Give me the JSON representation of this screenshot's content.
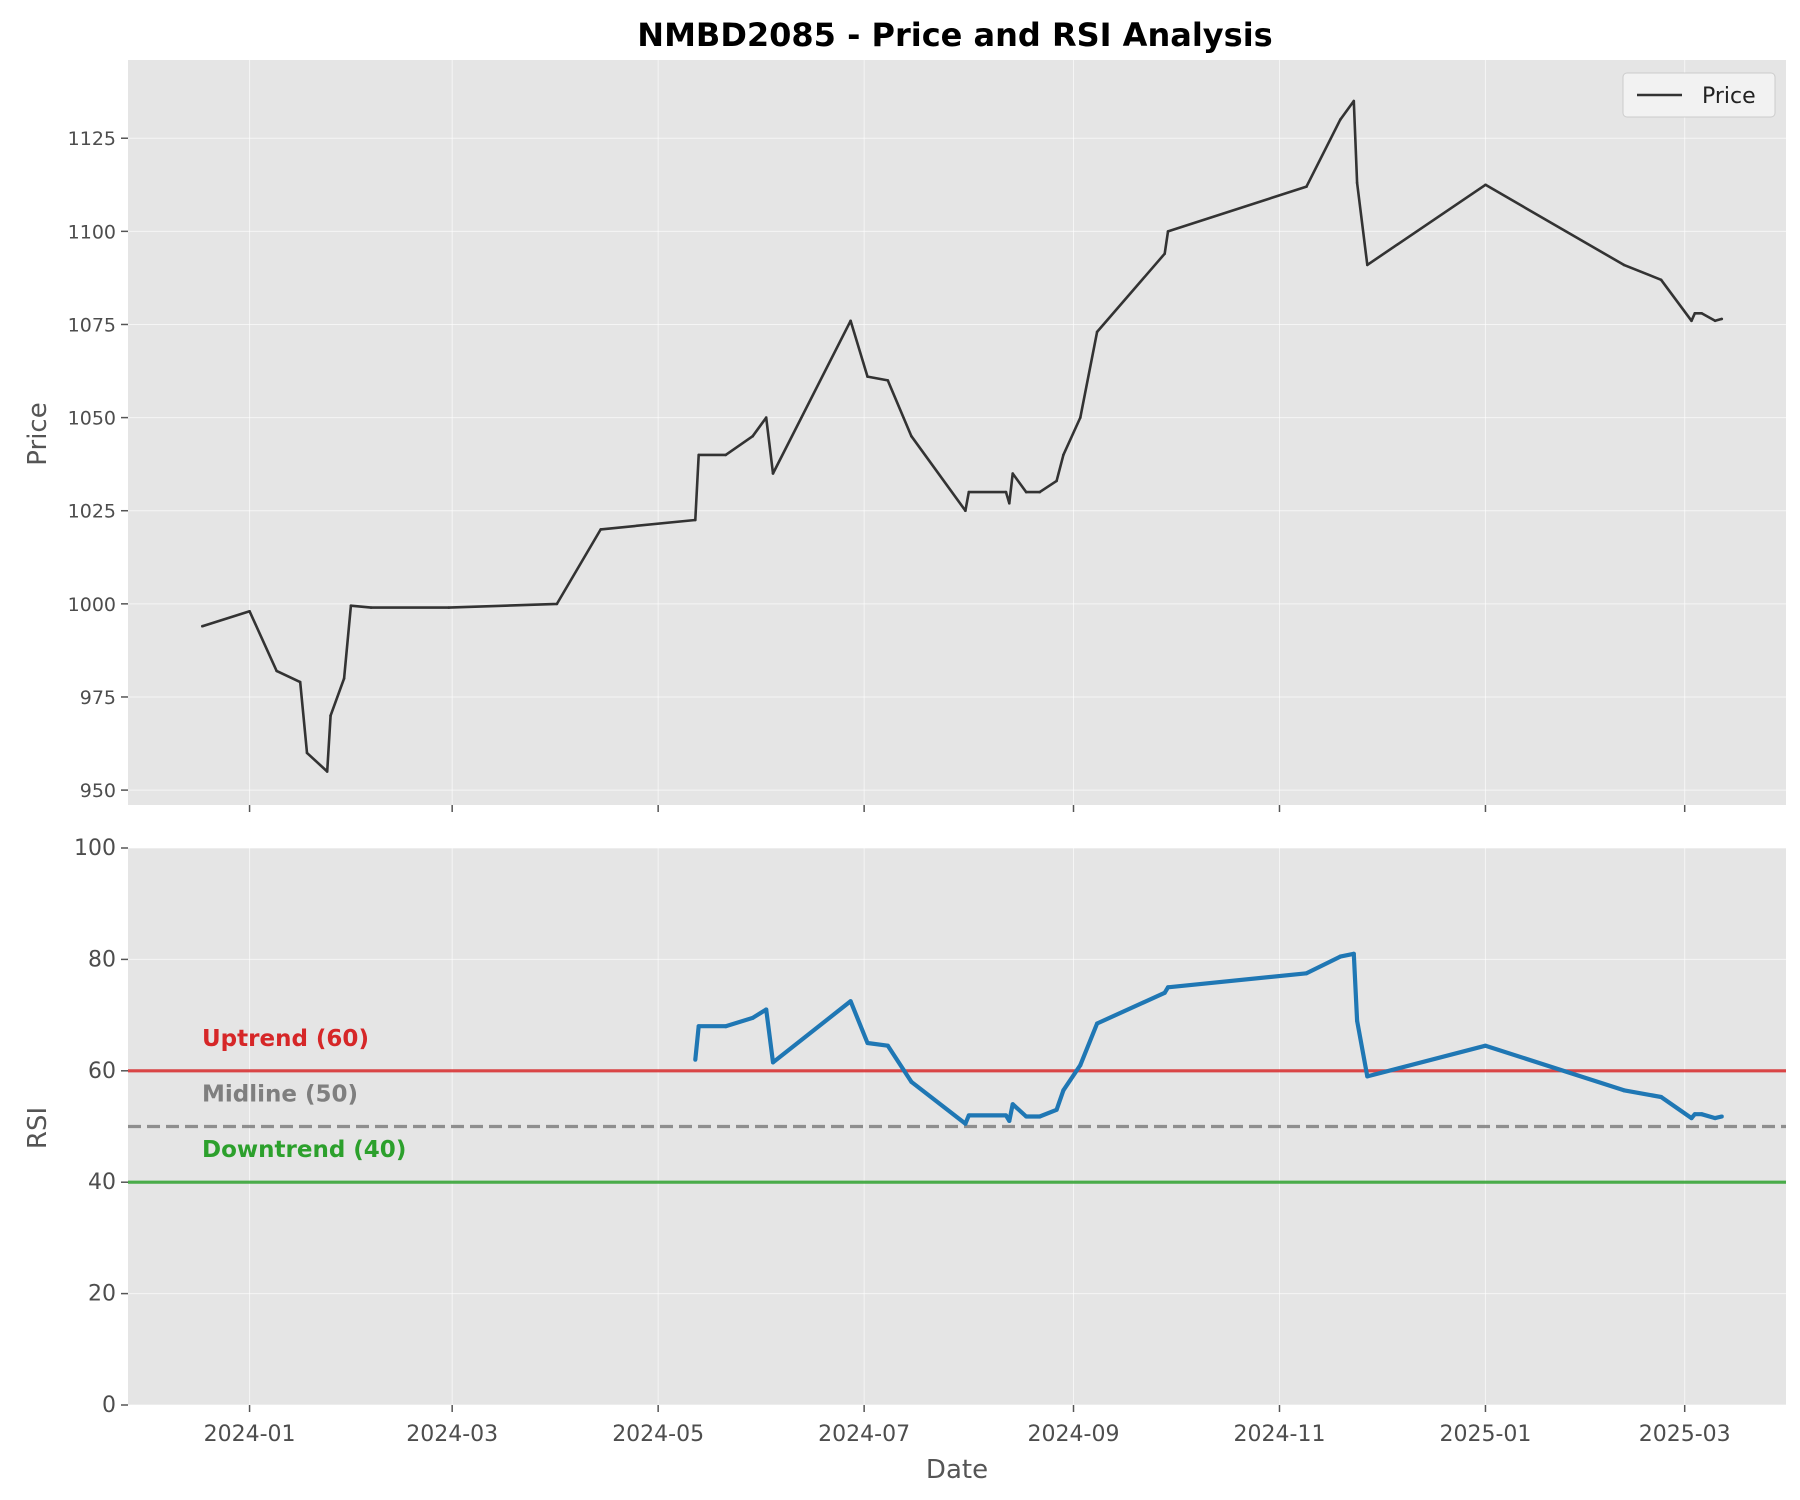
{
  "chart_data": [
    {
      "type": "line",
      "title": "NMBD2085 - Price and RSI Analysis",
      "ylabel": "Price",
      "xlabel": "",
      "ylim": [
        946,
        1146
      ],
      "yticks": [
        950,
        975,
        1000,
        1025,
        1050,
        1075,
        1100,
        1125
      ],
      "grid": true,
      "legend": {
        "placement": "top-right",
        "entries": [
          "Price"
        ]
      },
      "series": [
        {
          "name": "Price",
          "color": "#333333",
          "points": [
            [
              "2023-12-18",
              994
            ],
            [
              "2024-01-01",
              998
            ],
            [
              "2024-01-09",
              982
            ],
            [
              "2024-01-16",
              979
            ],
            [
              "2024-01-18",
              960
            ],
            [
              "2024-01-24",
              955
            ],
            [
              "2024-01-25",
              970
            ],
            [
              "2024-01-29",
              980
            ],
            [
              "2024-01-31",
              999.5
            ],
            [
              "2024-02-06",
              999
            ],
            [
              "2024-02-29",
              999
            ],
            [
              "2024-04-01",
              1000
            ],
            [
              "2024-04-14",
              1020
            ],
            [
              "2024-05-12",
              1022.5
            ],
            [
              "2024-05-13",
              1040
            ],
            [
              "2024-05-21",
              1040
            ],
            [
              "2024-05-29",
              1045
            ],
            [
              "2024-06-02",
              1050
            ],
            [
              "2024-06-04",
              1035
            ],
            [
              "2024-06-27",
              1076
            ],
            [
              "2024-07-02",
              1061
            ],
            [
              "2024-07-08",
              1060
            ],
            [
              "2024-07-15",
              1045
            ],
            [
              "2024-07-31",
              1025
            ],
            [
              "2024-08-01",
              1030
            ],
            [
              "2024-08-12",
              1030
            ],
            [
              "2024-08-13",
              1027
            ],
            [
              "2024-08-14",
              1035
            ],
            [
              "2024-08-18",
              1030
            ],
            [
              "2024-08-22",
              1030
            ],
            [
              "2024-08-27",
              1033
            ],
            [
              "2024-08-29",
              1040
            ],
            [
              "2024-09-03",
              1050
            ],
            [
              "2024-09-08",
              1073
            ],
            [
              "2024-09-28",
              1094
            ],
            [
              "2024-09-29",
              1100
            ],
            [
              "2024-11-09",
              1112
            ],
            [
              "2024-11-19",
              1130
            ],
            [
              "2024-11-23",
              1135
            ],
            [
              "2024-11-24",
              1113
            ],
            [
              "2024-11-27",
              1091
            ],
            [
              "2025-01-01",
              1112.5
            ],
            [
              "2025-02-11",
              1091
            ],
            [
              "2025-02-22",
              1087
            ],
            [
              "2025-03-03",
              1076
            ],
            [
              "2025-03-04",
              1078
            ],
            [
              "2025-03-06",
              1078
            ],
            [
              "2025-03-10",
              1076
            ],
            [
              "2025-03-12",
              1076.5
            ]
          ]
        }
      ]
    },
    {
      "type": "line",
      "title": "",
      "ylabel": "RSI",
      "xlabel": "Date",
      "ylim": [
        0,
        100
      ],
      "yticks": [
        0,
        20,
        40,
        60,
        80,
        100
      ],
      "xlim": [
        "2023-11-26",
        "2025-03-31"
      ],
      "xticks": [
        "2024-01",
        "2024-03",
        "2024-05",
        "2024-07",
        "2024-09",
        "2024-11",
        "2025-01",
        "2025-03"
      ],
      "grid": true,
      "reference_lines": [
        {
          "value": 60,
          "label": "Uptrend (60)",
          "color": "#d62728",
          "style": "solid"
        },
        {
          "value": 50,
          "label": "Midline (50)",
          "color": "#7f7f7f",
          "style": "dashed"
        },
        {
          "value": 40,
          "label": "Downtrend (40)",
          "color": "#2ca02c",
          "style": "solid"
        }
      ],
      "series": [
        {
          "name": "RSI",
          "color": "#1f77b4",
          "points": [
            [
              "2024-05-12",
              62
            ],
            [
              "2024-05-13",
              68
            ],
            [
              "2024-05-21",
              68
            ],
            [
              "2024-05-29",
              69.5
            ],
            [
              "2024-06-02",
              71
            ],
            [
              "2024-06-04",
              61.5
            ],
            [
              "2024-06-27",
              72.5
            ],
            [
              "2024-07-02",
              65
            ],
            [
              "2024-07-08",
              64.5
            ],
            [
              "2024-07-15",
              58
            ],
            [
              "2024-07-31",
              50.5
            ],
            [
              "2024-08-01",
              52
            ],
            [
              "2024-08-12",
              52
            ],
            [
              "2024-08-13",
              51
            ],
            [
              "2024-08-14",
              54
            ],
            [
              "2024-08-18",
              51.8
            ],
            [
              "2024-08-22",
              51.8
            ],
            [
              "2024-08-27",
              53
            ],
            [
              "2024-08-29",
              56.5
            ],
            [
              "2024-09-03",
              61
            ],
            [
              "2024-09-08",
              68.5
            ],
            [
              "2024-09-28",
              74
            ],
            [
              "2024-09-29",
              75
            ],
            [
              "2024-11-09",
              77.5
            ],
            [
              "2024-11-19",
              80.5
            ],
            [
              "2024-11-23",
              81
            ],
            [
              "2024-11-24",
              69
            ],
            [
              "2024-11-27",
              59
            ],
            [
              "2025-01-01",
              64.5
            ],
            [
              "2025-02-11",
              56.5
            ],
            [
              "2025-02-22",
              55.3
            ],
            [
              "2025-03-03",
              51.5
            ],
            [
              "2025-03-04",
              52.2
            ],
            [
              "2025-03-06",
              52.2
            ],
            [
              "2025-03-10",
              51.5
            ],
            [
              "2025-03-12",
              51.8
            ]
          ]
        }
      ]
    }
  ]
}
